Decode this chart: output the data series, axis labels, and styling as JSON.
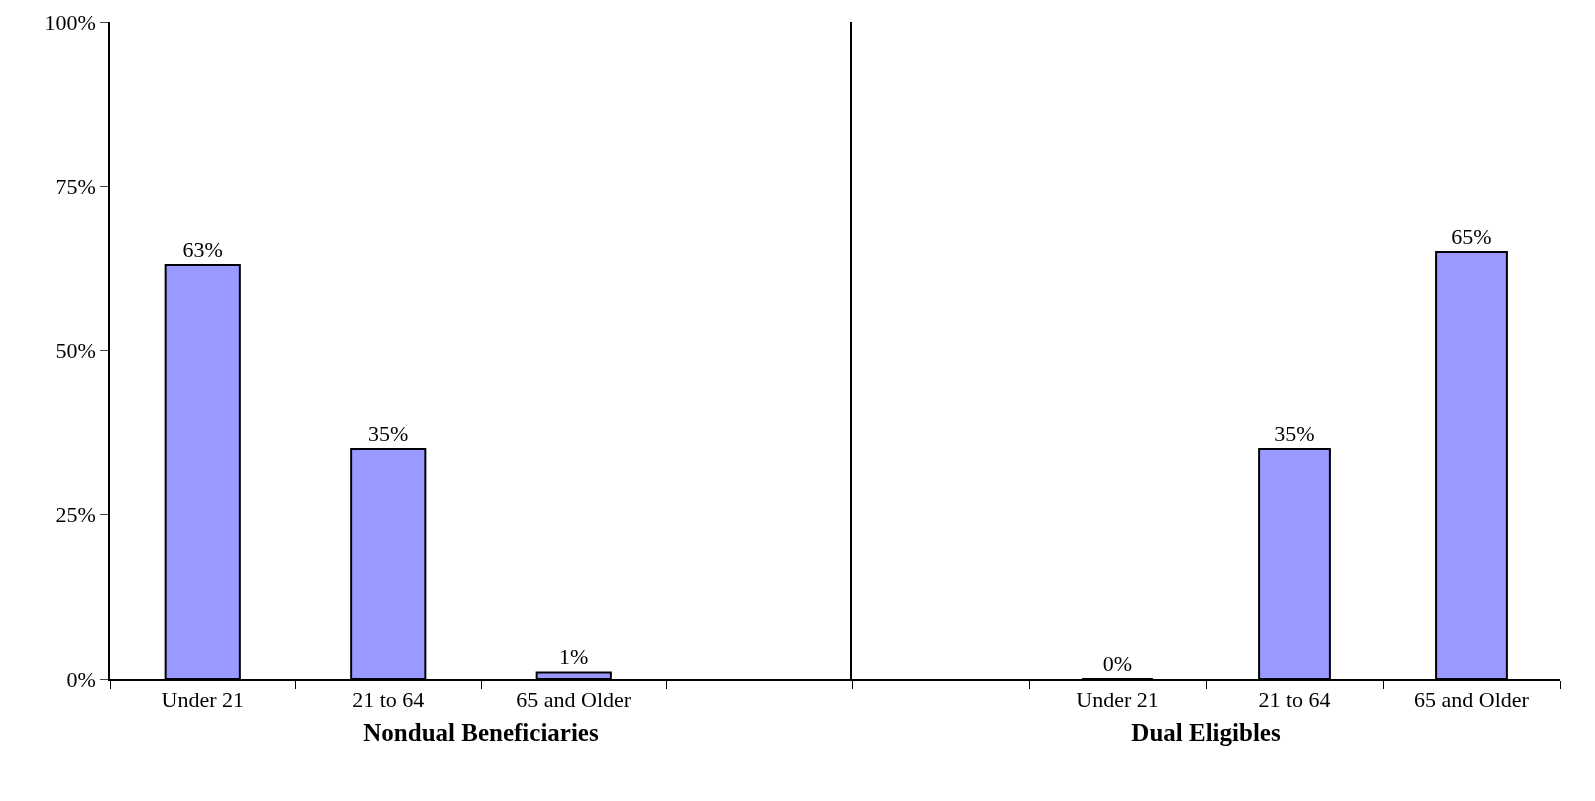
{
  "chart_data": [
    {
      "type": "bar",
      "xlabel": "Nondual Beneficiaries",
      "categories": [
        "Under 21",
        "21 to 64",
        "65 and Older",
        null
      ],
      "values": [
        63,
        35,
        1,
        null
      ],
      "value_labels": [
        "63%",
        "35%",
        "1%",
        null
      ],
      "color": "#9999ff",
      "ylim": [
        0,
        100
      ],
      "yticks": [
        {
          "value": 0,
          "label": "0%"
        },
        {
          "value": 25,
          "label": "25%"
        },
        {
          "value": 50,
          "label": "50%"
        },
        {
          "value": 75,
          "label": "75%"
        },
        {
          "value": 100,
          "label": "100%"
        }
      ],
      "legend": false
    },
    {
      "type": "bar",
      "xlabel": "Dual Eligibles",
      "categories": [
        null,
        "Under 21",
        "21 to 64",
        "65 and Older"
      ],
      "values": [
        null,
        0,
        35,
        65
      ],
      "value_labels": [
        null,
        "0%",
        "35%",
        "65%"
      ],
      "color": "#9999ff",
      "ylim": [
        0,
        100
      ],
      "legend": false,
      "tick_labels": "x"
    }
  ]
}
